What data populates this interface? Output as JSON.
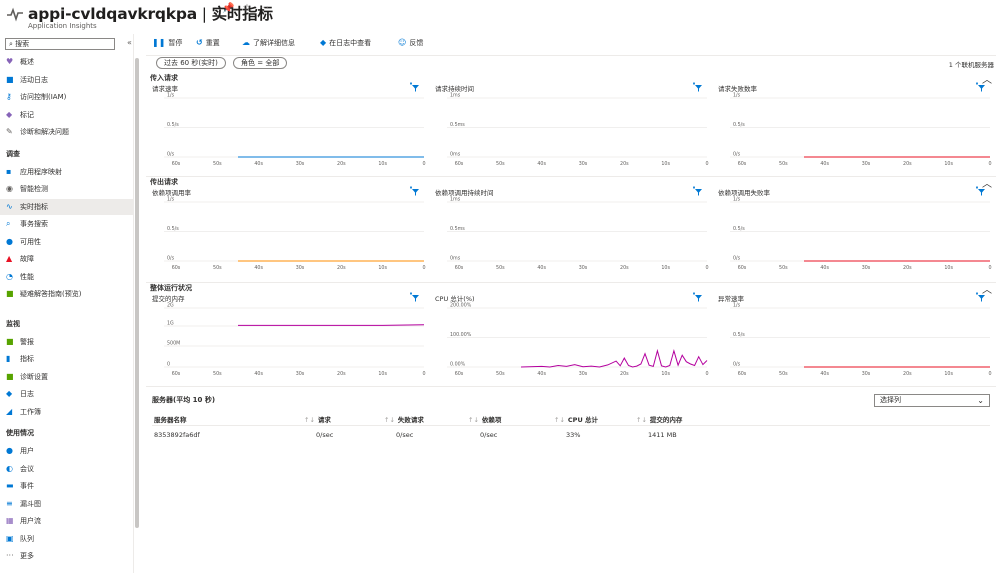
{
  "header": {
    "title": "appi-cvldqavkrqkpa",
    "title_sep": " | ",
    "page": "实时指标",
    "subtitle": "Application Insights",
    "pin_icon": "pin-icon",
    "star_icon": "star-icon",
    "more": "···"
  },
  "sidebar": {
    "search_placeholder": "搜索",
    "collapse": "«",
    "items_top": [
      {
        "label": "概述",
        "icon": "♥",
        "color": "#8764b8"
      },
      {
        "label": "活动日志",
        "icon": "■",
        "color": "#0078d4"
      },
      {
        "label": "访问控制(IAM)",
        "icon": "⚷",
        "color": "#0078d4"
      },
      {
        "label": "标记",
        "icon": "◆",
        "color": "#8764b8"
      },
      {
        "label": "诊断和解决问题",
        "icon": "✎",
        "color": "#605e5c"
      }
    ],
    "section_investigate": "调查",
    "items_investigate": [
      {
        "label": "应用程序映射",
        "icon": "▪",
        "color": "#0078d4"
      },
      {
        "label": "智能检测",
        "icon": "◉",
        "color": "#605e5c"
      },
      {
        "label": "实时指标",
        "icon": "∿",
        "color": "#0078d4",
        "active": true
      },
      {
        "label": "事务搜索",
        "icon": "⌕",
        "color": "#0078d4"
      },
      {
        "label": "可用性",
        "icon": "●",
        "color": "#0078d4"
      },
      {
        "label": "故障",
        "icon": "▲",
        "color": "#e81123"
      },
      {
        "label": "性能",
        "icon": "◔",
        "color": "#0078d4"
      },
      {
        "label": "疑难解答指南(预览)",
        "icon": "■",
        "color": "#57a300"
      }
    ],
    "section_monitor": "监视",
    "items_monitor": [
      {
        "label": "警报",
        "icon": "■",
        "color": "#57a300"
      },
      {
        "label": "指标",
        "icon": "▮",
        "color": "#0078d4"
      },
      {
        "label": "诊断设置",
        "icon": "■",
        "color": "#57a300"
      },
      {
        "label": "日志",
        "icon": "◆",
        "color": "#0078d4"
      },
      {
        "label": "工作簿",
        "icon": "◢",
        "color": "#0078d4"
      }
    ],
    "section_usage": "使用情况",
    "items_usage": [
      {
        "label": "用户",
        "icon": "●",
        "color": "#0078d4"
      },
      {
        "label": "会议",
        "icon": "◐",
        "color": "#0078d4"
      },
      {
        "label": "事件",
        "icon": "▬",
        "color": "#0078d4"
      },
      {
        "label": "漏斗图",
        "icon": "≡",
        "color": "#0078d4"
      },
      {
        "label": "用户流",
        "icon": "▦",
        "color": "#8764b8"
      },
      {
        "label": "队列",
        "icon": "▣",
        "color": "#0078d4"
      },
      {
        "label": "更多",
        "icon": "···",
        "color": "#605e5c"
      }
    ]
  },
  "toolbar": {
    "pause": "暂停",
    "reset": "重置",
    "learn_more": "了解详细信息",
    "view_logs": "在日志中查看",
    "feedback": "反馈"
  },
  "filters": {
    "time_range": "过去 60 秒(实时)",
    "role": "角色 = 全部",
    "online_servers": "1 个联机服务器"
  },
  "sections": [
    {
      "title": "传入请求",
      "charts": [
        {
          "title": "请求速率",
          "yticks": [
            "1/s",
            "0.5/s",
            "0/s"
          ],
          "color": "#0078d4"
        },
        {
          "title": "请求持续时间",
          "yticks": [
            "1ms",
            "0.5ms",
            "0ms"
          ],
          "color": "#0078d4"
        },
        {
          "title": "请求失败数率",
          "yticks": [
            "1/s",
            "0.5/s",
            "0/s"
          ],
          "color": "#e81123"
        }
      ]
    },
    {
      "title": "传出请求",
      "charts": [
        {
          "title": "依赖项调用率",
          "yticks": [
            "1/s",
            "0.5/s",
            "0/s"
          ],
          "color": "#ff8c00"
        },
        {
          "title": "依赖项调用持续时间",
          "yticks": [
            "1ms",
            "0.5ms",
            "0ms"
          ],
          "color": "#0078d4"
        },
        {
          "title": "依赖项调用失败率",
          "yticks": [
            "1/s",
            "0.5/s",
            "0/s"
          ],
          "color": "#e81123"
        }
      ]
    },
    {
      "title": "整体运行状况",
      "charts": [
        {
          "title": "提交的内存",
          "yticks": [
            "2G",
            "1G",
            "500M",
            "0"
          ],
          "color": "#b4009e"
        },
        {
          "title": "CPU 总计(%)",
          "yticks": [
            "200.00%",
            "100.00%",
            "0.00%"
          ],
          "color": "#b4009e"
        },
        {
          "title": "异常速率",
          "yticks": [
            "1/s",
            "0.5/s",
            "0/s"
          ],
          "color": "#e81123"
        }
      ]
    }
  ],
  "xticks": [
    "60s",
    "50s",
    "40s",
    "30s",
    "20s",
    "10s",
    "0"
  ],
  "chart_data": [
    {
      "type": "line",
      "title": "请求速率",
      "x": [
        -45,
        0
      ],
      "series": [
        {
          "values": [
            0,
            0
          ]
        }
      ],
      "ylim": [
        0,
        1
      ]
    },
    {
      "type": "line",
      "title": "请求失败数率",
      "x": [
        -45,
        0
      ],
      "series": [
        {
          "values": [
            0,
            0
          ]
        }
      ],
      "ylim": [
        0,
        1
      ]
    },
    {
      "type": "line",
      "title": "依赖项调用率",
      "x": [
        -45,
        0
      ],
      "series": [
        {
          "values": [
            0,
            0
          ]
        }
      ],
      "ylim": [
        0,
        1
      ]
    },
    {
      "type": "line",
      "title": "依赖项调用失败率",
      "x": [
        -45,
        0
      ],
      "series": [
        {
          "values": [
            0,
            0
          ]
        }
      ],
      "ylim": [
        0,
        1
      ]
    },
    {
      "type": "line",
      "title": "提交的内存",
      "x": [
        -45,
        -10,
        0
      ],
      "series": [
        {
          "values": [
            1.41,
            1.41,
            1.43
          ]
        }
      ],
      "ylim": [
        0,
        2
      ]
    },
    {
      "type": "line",
      "title": "CPU 总计(%)",
      "x": [
        -45,
        -40,
        -38,
        -36,
        -34,
        -32,
        -30,
        -28,
        -26,
        -24,
        -22,
        -21,
        -20,
        -19,
        -18,
        -17,
        -16,
        -15,
        -14,
        -13,
        -12,
        -11,
        -10,
        -9,
        -8,
        -7,
        -6,
        -5,
        -4,
        -3,
        -2,
        -1,
        0
      ],
      "series": [
        {
          "values": [
            0,
            2,
            0,
            5,
            2,
            8,
            1,
            3,
            0,
            7,
            20,
            4,
            30,
            5,
            0,
            3,
            10,
            45,
            6,
            2,
            55,
            4,
            0,
            5,
            55,
            6,
            40,
            18,
            10,
            5,
            35,
            8,
            22
          ]
        }
      ],
      "ylim": [
        0,
        200
      ]
    },
    {
      "type": "line",
      "title": "异常速率",
      "x": [
        -45,
        0
      ],
      "series": [
        {
          "values": [
            0,
            0
          ]
        }
      ],
      "ylim": [
        0,
        1
      ]
    }
  ],
  "servers": {
    "title": "服务器(平均 10 秒)",
    "select_columns": "选择列",
    "columns": [
      "服务器名称",
      "请求",
      "失败请求",
      "依赖项",
      "CPU 总计",
      "提交的内存"
    ],
    "rows": [
      [
        "8353892fa6df",
        "0/sec",
        "0/sec",
        "0/sec",
        "33%",
        "1411 MB"
      ]
    ]
  }
}
